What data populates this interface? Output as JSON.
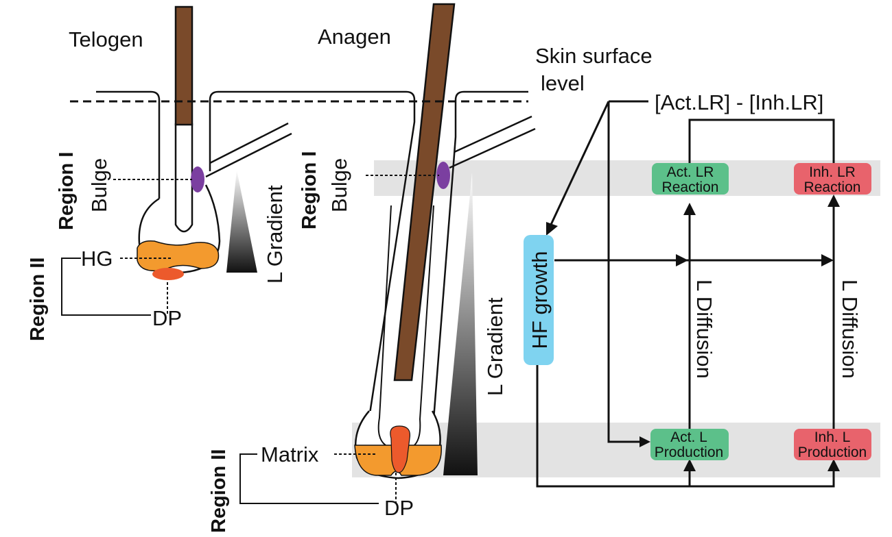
{
  "panels": {
    "telogen": "Telogen",
    "anagen": "Anagen"
  },
  "labels": {
    "skin_surface_1": "Skin surface",
    "skin_surface_2": "level",
    "bulge": "Bulge",
    "hg": "HG",
    "dp": "DP",
    "matrix": "Matrix",
    "l_gradient": "L Gradient",
    "region_1": "Region I",
    "region_2": "Region II"
  },
  "network": {
    "act_minus_inh": "[Act.LR] - [Inh.LR]",
    "hf_growth": "HF growth",
    "l_diffusion": "L Diffusion",
    "act_lr_reaction": [
      "Act. LR",
      "Reaction"
    ],
    "inh_lr_reaction": [
      "Inh. LR",
      "Reaction"
    ],
    "act_l_production": [
      "Act. L",
      "Production"
    ],
    "inh_l_production": [
      "Inh. L",
      "Production"
    ]
  },
  "colors": {
    "hair_shaft": "#7a4a2a",
    "bulge": "#7b3fa0",
    "hair_germ": "#f39a2e",
    "dermal_papilla": "#ec5a2c",
    "activator_box": "#5cc08a",
    "inhibitor_box": "#e8636c",
    "hf_growth_box": "#7fd3f0",
    "band": "#e3e3e3"
  }
}
